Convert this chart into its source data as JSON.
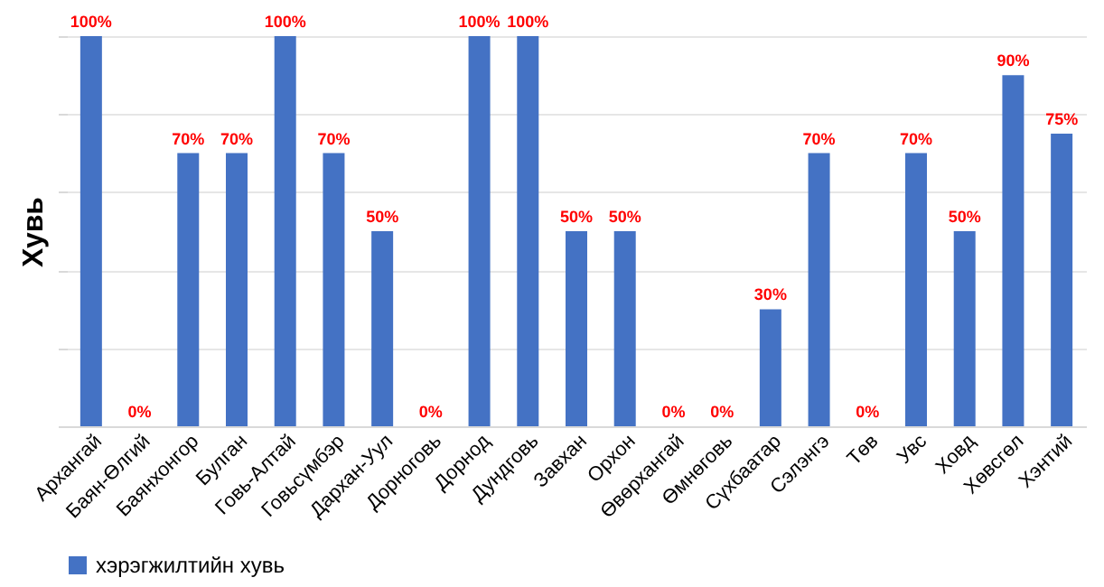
{
  "chart_data": {
    "type": "bar",
    "ylabel": "Хувь",
    "categories": [
      "Архангай",
      "Баян-Өлгий",
      "Баянхонгор",
      "Булган",
      "Говь-Алтай",
      "Говьсүмбэр",
      "Дархан-Уул",
      "Дорноговь",
      "Дорнод",
      "Дундговь",
      "Завхан",
      "Орхон",
      "Өвөрхангай",
      "Өмнөговь",
      "Сүхбаатар",
      "Сэлэнгэ",
      "Төв",
      "Увс",
      "Ховд",
      "Хөвсгөл",
      "Хэнтий"
    ],
    "series": [
      {
        "name": "хэрэгжилтийн хувь",
        "color": "#4472c4",
        "values": [
          100,
          0,
          70,
          70,
          100,
          70,
          50,
          0,
          100,
          100,
          50,
          50,
          0,
          0,
          30,
          70,
          0,
          70,
          50,
          90,
          75
        ],
        "value_labels": [
          "100%",
          "0%",
          "70%",
          "70%",
          "100%",
          "70%",
          "50%",
          "0%",
          "100%",
          "100%",
          "50%",
          "50%",
          "0%",
          "0%",
          "30%",
          "70%",
          "0%",
          "70%",
          "50%",
          "90%",
          "75%"
        ]
      }
    ],
    "ylim": [
      0,
      100
    ],
    "yticks": [
      {
        "value": 0,
        "label": null
      },
      {
        "value": 20,
        "label": null
      },
      {
        "value": 40,
        "label": null
      },
      {
        "value": 60,
        "label": null
      },
      {
        "value": 80,
        "label": null
      },
      {
        "value": 100,
        "label": null
      }
    ],
    "grid": "y",
    "legend": "bottom"
  }
}
